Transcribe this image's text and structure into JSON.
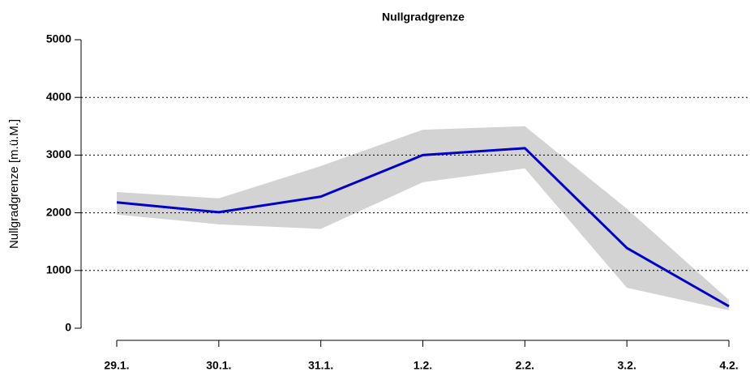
{
  "chart_data": {
    "type": "line",
    "title": "Nullgradgrenze",
    "y_label": "Nullgradgrenze [m.ü.M.]",
    "categories": [
      "29.1.",
      "30.1.",
      "31.1.",
      "1.2.",
      "2.2.",
      "3.2.",
      "4.2."
    ],
    "series": [
      {
        "color": "#0000c8",
        "values": [
          2180,
          2010,
          2280,
          3000,
          3120,
          1390,
          380
        ]
      }
    ],
    "band": {
      "color": "#d3d3d3",
      "upper": [
        2360,
        2250,
        2810,
        3440,
        3500,
        2070,
        490
      ],
      "lower": [
        1970,
        1800,
        1720,
        2530,
        2770,
        700,
        310
      ]
    },
    "ylim": [
      0,
      5000
    ],
    "yticks": [
      0,
      1000,
      2000,
      3000,
      4000,
      5000
    ],
    "grid": true
  }
}
